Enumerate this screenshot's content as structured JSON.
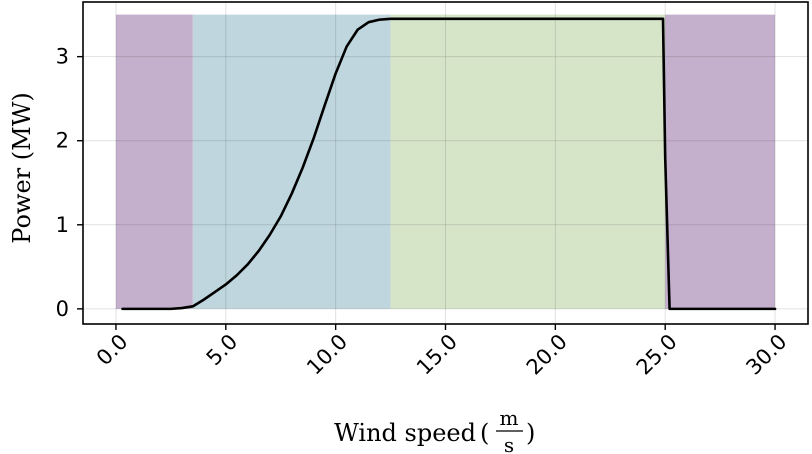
{
  "chart_data": {
    "type": "line",
    "title": "",
    "xlabel": "Wind speed",
    "xlabel_unit": {
      "numerator": "m",
      "denominator": "s"
    },
    "ylabel": "Power (MW)",
    "xlim": [
      -1.5,
      31.5
    ],
    "ylim": [
      -0.18,
      3.65
    ],
    "xticks": [
      0,
      5,
      10,
      15,
      20,
      25,
      30
    ],
    "xtick_labels": [
      "0.0",
      "5.0",
      "10.0",
      "15.0",
      "20.0",
      "25.0",
      "30.0"
    ],
    "yticks": [
      0,
      1,
      2,
      3
    ],
    "ytick_labels": [
      "0",
      "1",
      "2",
      "3"
    ],
    "grid": true,
    "legend": "none",
    "regions": [
      {
        "x0": 0.0,
        "x1": 3.5,
        "y0": 0,
        "y1": 3.5,
        "color": "#c4b0cc"
      },
      {
        "x0": 3.5,
        "x1": 12.5,
        "y0": 0,
        "y1": 3.5,
        "color": "#bfd6de"
      },
      {
        "x0": 12.5,
        "x1": 25.0,
        "y0": 0,
        "y1": 3.5,
        "color": "#d6e4c8"
      },
      {
        "x0": 25.0,
        "x1": 30.0,
        "y0": 0,
        "y1": 3.5,
        "color": "#c4b0cc"
      }
    ],
    "series": [
      {
        "color": "#000000",
        "x": [
          0.3,
          1.0,
          2.0,
          2.5,
          3.0,
          3.5,
          4.0,
          4.5,
          5.0,
          5.5,
          6.0,
          6.5,
          7.0,
          7.5,
          8.0,
          8.5,
          9.0,
          9.5,
          10.0,
          10.5,
          11.0,
          11.5,
          12.0,
          12.5,
          13.0,
          14.0,
          16.0,
          20.0,
          24.0,
          24.9,
          25.0,
          25.2,
          26.0,
          28.0,
          30.0
        ],
        "y": [
          0.0,
          0.0,
          0.0,
          0.0,
          0.01,
          0.03,
          0.11,
          0.2,
          0.29,
          0.4,
          0.53,
          0.69,
          0.88,
          1.1,
          1.37,
          1.68,
          2.03,
          2.42,
          2.8,
          3.12,
          3.32,
          3.41,
          3.44,
          3.45,
          3.45,
          3.45,
          3.45,
          3.45,
          3.45,
          3.45,
          1.8,
          0.0,
          0.0,
          0.0,
          0.0
        ]
      }
    ]
  }
}
